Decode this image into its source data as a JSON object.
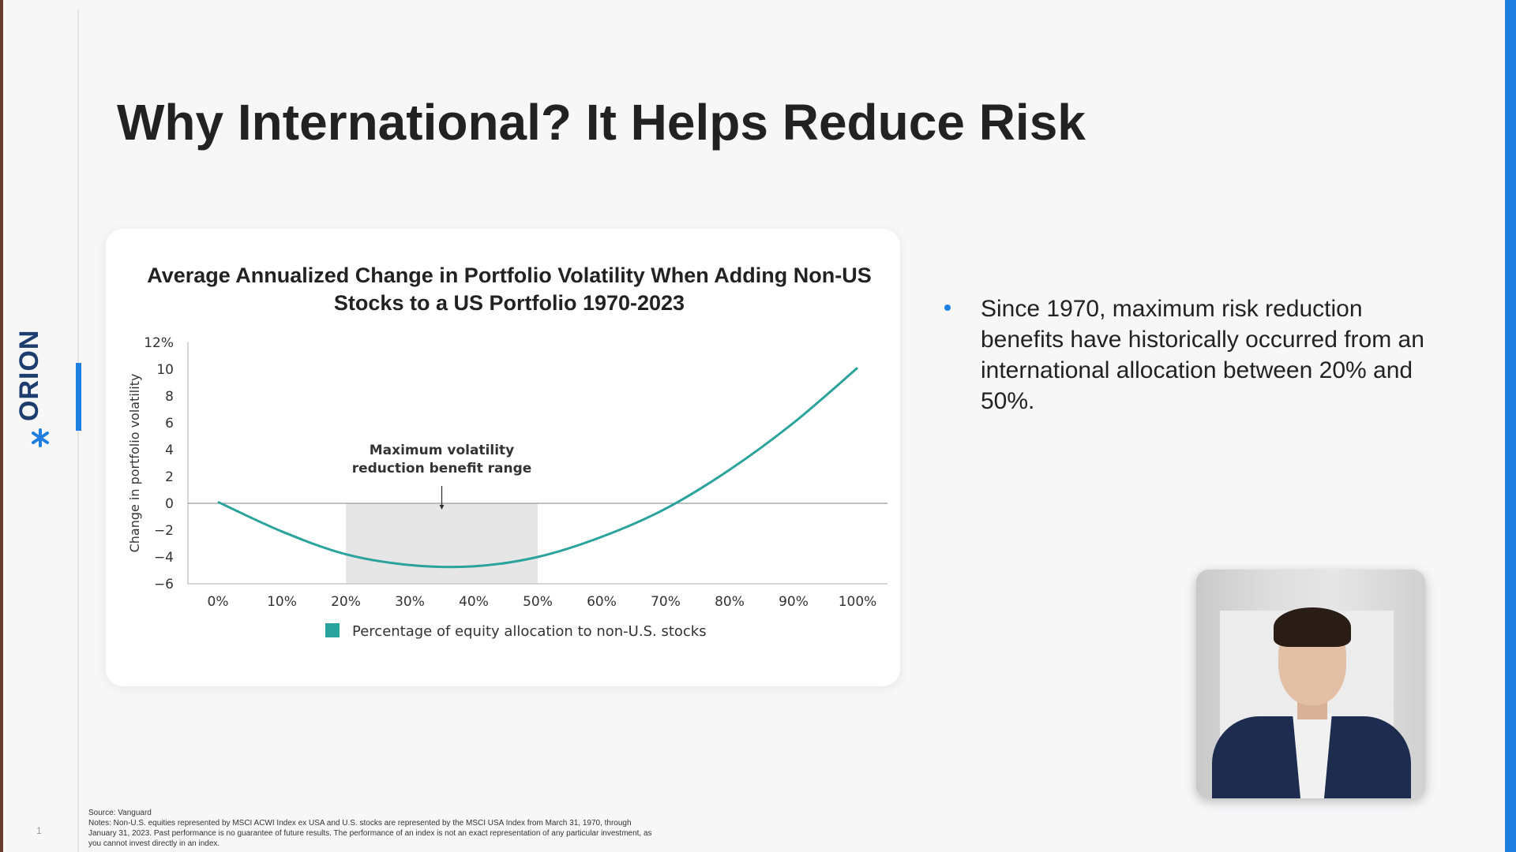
{
  "logo": {
    "text": "ORION"
  },
  "page_number": "1",
  "slide": {
    "title": "Why International? It Helps Reduce Risk"
  },
  "bullets": [
    "Since 1970, maximum risk reduction benefits have historically occurred from an international allocation between 20% and 50%."
  ],
  "footnote": {
    "source": "Source: Vanguard",
    "notes": "Notes: Non-U.S. equities represented by MSCI ACWI Index ex USA and U.S. stocks are represented by the MSCI USA Index from March 31, 1970, through January 31, 2023. Past performance is no guarantee of future results. The performance of an index is not an exact representation of any particular investment, as you cannot invest directly in an index."
  },
  "colors": {
    "accent": "#1f7fe0",
    "series": "#2aa39c",
    "shade": "#e6e6e6",
    "logo_navy": "#1c3d6e"
  },
  "video": {
    "icon": "presenter-video-feed"
  },
  "chart_data": {
    "type": "line",
    "title": "Average Annualized Change in Portfolio Volatility When Adding Non-US Stocks to a US Portfolio 1970-2023",
    "ylabel": "Change in portfolio volatility",
    "xlabel": "",
    "x": [
      0,
      10,
      20,
      30,
      40,
      50,
      60,
      70,
      80,
      90,
      100
    ],
    "xtick_labels": [
      "0%",
      "10%",
      "20%",
      "30%",
      "40%",
      "50%",
      "60%",
      "70%",
      "80%",
      "90%",
      "100%"
    ],
    "ylim": [
      -6,
      12
    ],
    "yticks": [
      12,
      10,
      8,
      6,
      4,
      2,
      0,
      -2,
      -4,
      -6
    ],
    "ytick_labels": [
      "12%",
      "10",
      "8",
      "6",
      "4",
      "2",
      "0",
      "−2",
      "−4",
      "−6"
    ],
    "series": [
      {
        "name": "Percentage of equity allocation to non-U.S. stocks",
        "values": [
          0.1,
          -2.1,
          -3.8,
          -4.6,
          -4.7,
          -4.0,
          -2.5,
          -0.4,
          2.5,
          6.0,
          10.1
        ]
      }
    ],
    "shaded_range": {
      "x_start": 20,
      "x_end": 50,
      "label_line1": "Maximum volatility",
      "label_line2": "reduction benefit range"
    },
    "zero_line": true,
    "grid": false,
    "legend_position": "bottom"
  }
}
